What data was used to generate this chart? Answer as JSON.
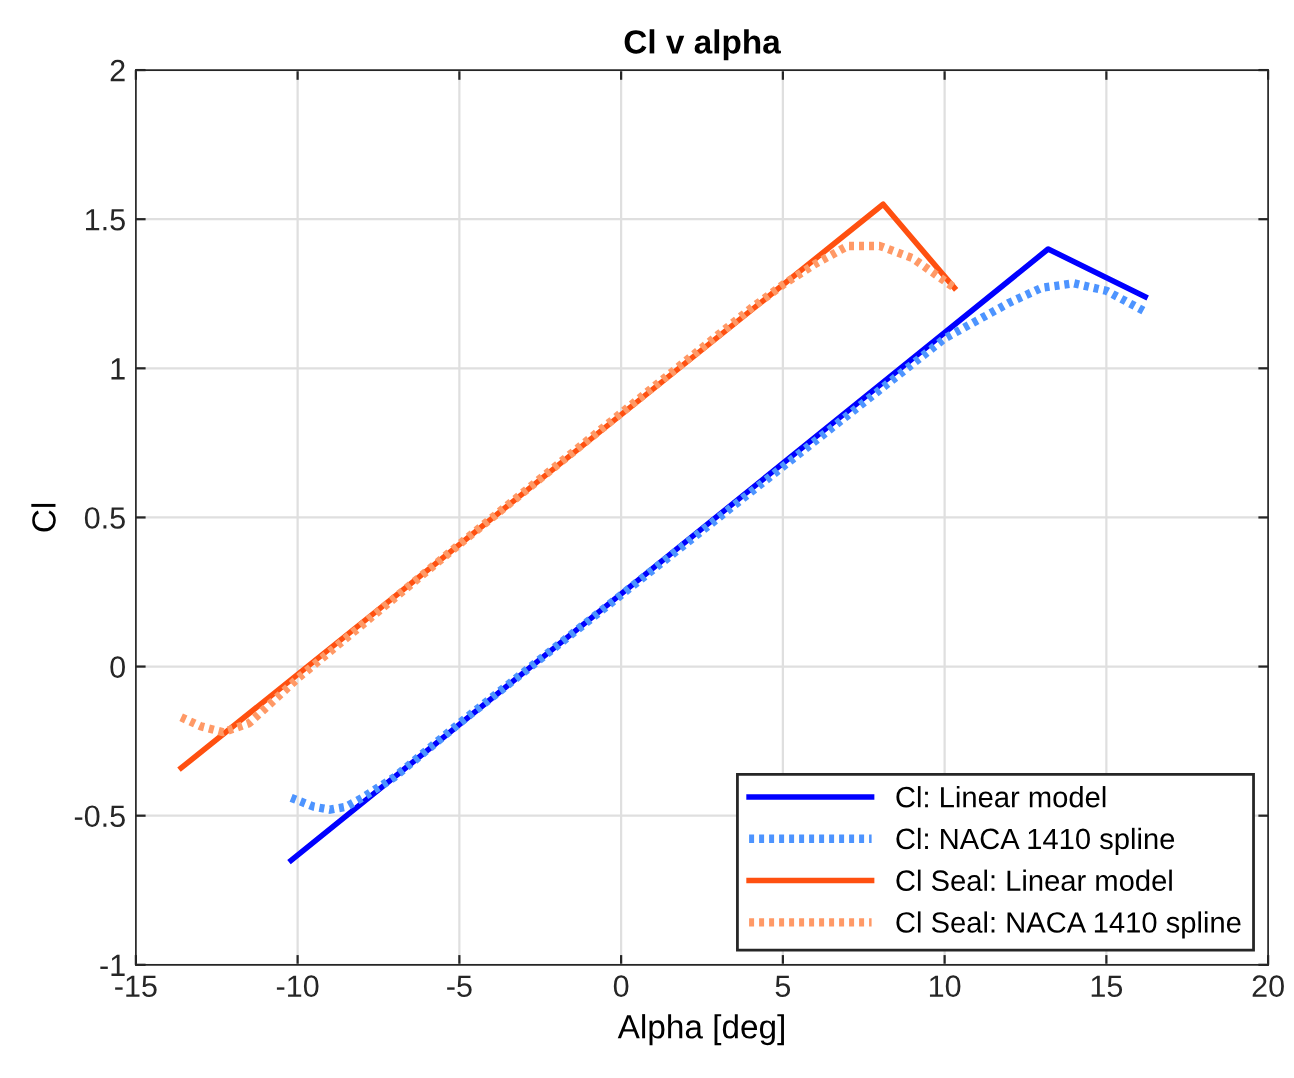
{
  "chart_data": {
    "type": "line",
    "title": "Cl v alpha",
    "xlabel": "Alpha [deg]",
    "ylabel": "Cl",
    "xlim": [
      -15,
      20
    ],
    "xticks": [
      -15,
      -10,
      -5,
      0,
      5,
      10,
      15,
      20
    ],
    "ylim": [
      -1,
      2
    ],
    "yticks": [
      -1,
      -0.5,
      0,
      0.5,
      1,
      1.5,
      2
    ],
    "grid": true,
    "legend": "bottom right",
    "marker": "none",
    "series": [
      {
        "name": "Cl: Linear model",
        "color": "#0000ff",
        "line_style": "solid",
        "x": [
          -10.2,
          13.2,
          16.2
        ],
        "values": [
          -0.65,
          1.4,
          1.24
        ]
      },
      {
        "name": "Cl: NACA 1410 spline",
        "color": "#4d94ff",
        "line_style": "dotted",
        "x": [
          -10.2,
          -9.5,
          -9,
          -8.5,
          -8,
          -7,
          -5,
          0,
          5,
          10,
          12,
          13,
          14,
          15,
          16.2
        ],
        "values": [
          -0.44,
          -0.47,
          -0.48,
          -0.47,
          -0.44,
          -0.37,
          -0.19,
          0.24,
          0.67,
          1.1,
          1.22,
          1.27,
          1.285,
          1.26,
          1.19
        ]
      },
      {
        "name": "Cl Seal: Linear model",
        "color": "#ff5010",
        "line_style": "solid",
        "x": [
          -13.6,
          8.1,
          10.3
        ],
        "values": [
          -0.34,
          1.55,
          1.27
        ]
      },
      {
        "name": "Cl Seal: NACA 1410 spline",
        "color": "#ff9966",
        "line_style": "dotted",
        "x": [
          -13.6,
          -13,
          -12.3,
          -11.5,
          -11,
          -10,
          -5,
          0,
          4,
          5,
          6,
          7,
          8,
          9,
          10.3
        ],
        "values": [
          -0.17,
          -0.2,
          -0.22,
          -0.19,
          -0.14,
          -0.04,
          0.41,
          0.85,
          1.2,
          1.28,
          1.35,
          1.41,
          1.41,
          1.37,
          1.27
        ]
      }
    ]
  }
}
